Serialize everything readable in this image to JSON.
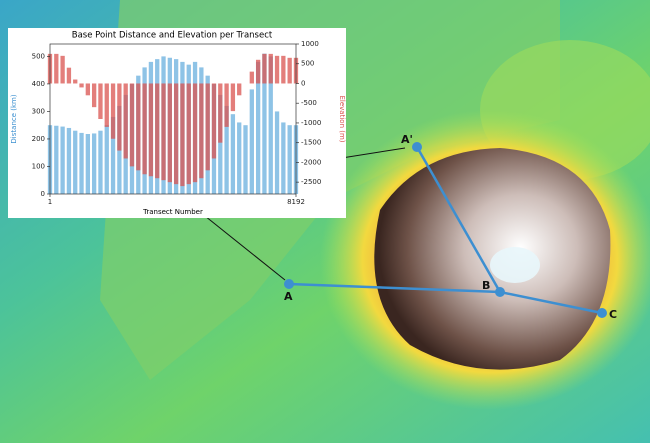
{
  "chart_data": {
    "type": "bar",
    "title": "Base Point Distance and Elevation per Transect",
    "x_label": "Transect Number",
    "y_label": "Distance (km)",
    "y2_label": "Elevation (m)",
    "x": [
      1,
      211,
      421,
      631,
      841,
      1051,
      1261,
      1471,
      1681,
      1891,
      2101,
      2311,
      2521,
      2731,
      2941,
      3151,
      3361,
      3571,
      3781,
      3991,
      4201,
      4411,
      4621,
      4831,
      5041,
      5251,
      5461,
      5671,
      5881,
      6091,
      6301,
      6511,
      6721,
      6931,
      7141,
      7351,
      7561,
      7771,
      7981,
      8191
    ],
    "series": [
      {
        "name": "Distance (km)",
        "color": "#8ec3e6",
        "values": [
          250,
          248,
          245,
          240,
          230,
          222,
          218,
          220,
          230,
          250,
          280,
          320,
          360,
          400,
          430,
          460,
          480,
          490,
          500,
          495,
          490,
          480,
          470,
          480,
          460,
          430,
          400,
          360,
          320,
          290,
          260,
          250,
          380,
          480,
          510,
          500,
          300,
          260,
          250,
          250
        ]
      },
      {
        "name": "Elevation (m)",
        "color": "#d9534f",
        "axis": "y2",
        "values": [
          750,
          750,
          700,
          400,
          100,
          -100,
          -300,
          -600,
          -900,
          -1100,
          -1400,
          -1700,
          -1900,
          -2100,
          -2200,
          -2300,
          -2350,
          -2400,
          -2450,
          -2500,
          -2550,
          -2600,
          -2550,
          -2500,
          -2400,
          -2200,
          -1900,
          -1500,
          -1100,
          -700,
          -300,
          0,
          300,
          600,
          750,
          750,
          700,
          700,
          650,
          650
        ]
      }
    ],
    "xlim": [
      1,
      8192
    ],
    "xticks": [
      1,
      8192
    ],
    "ylim": [
      0,
      545
    ],
    "yticks": [
      0,
      100,
      200,
      300,
      400,
      500
    ],
    "y2lim": [
      -2800,
      1000
    ],
    "y2ticks": [
      1000,
      500,
      0,
      -500,
      -1000,
      -1500,
      -2000,
      -2500
    ]
  },
  "map": {
    "labels": [
      "A'",
      "A",
      "B",
      "C"
    ]
  }
}
